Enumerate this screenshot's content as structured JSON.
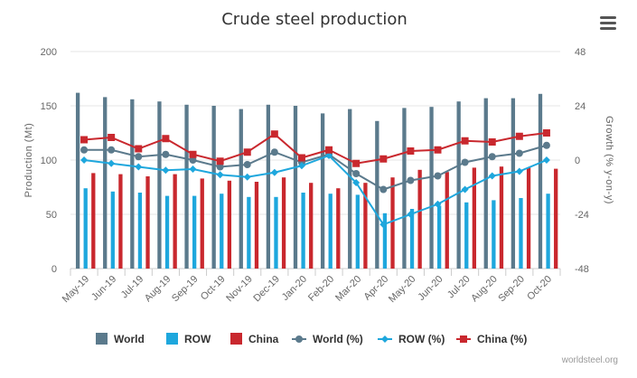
{
  "chart_data": {
    "type": "bar",
    "title": "Crude steel production",
    "categories": [
      "May-19",
      "Jun-19",
      "Jul-19",
      "Aug-19",
      "Sep-19",
      "Oct-19",
      "Nov-19",
      "Dec-19",
      "Jan-20",
      "Feb-20",
      "Mar-20",
      "Apr-20",
      "May-20",
      "Jun-20",
      "Jul-20",
      "Aug-20",
      "Sep-20",
      "Oct-20"
    ],
    "ylabel": "Production (Mt)",
    "ylabel_right": "Growth (% y-on-y)",
    "ylim": [
      0,
      200
    ],
    "ylim_right": [
      -48,
      48
    ],
    "yticks": [
      "0",
      "50",
      "100",
      "150",
      "200"
    ],
    "yticks_right": [
      "-48",
      "-24",
      "0",
      "24",
      "48"
    ],
    "grid": true,
    "legend_position": "bottom",
    "series": [
      {
        "name": "World",
        "kind": "bar",
        "axis": "left",
        "color": "#5b7a8c",
        "values": [
          162,
          158,
          156,
          154,
          151,
          150,
          147,
          151,
          150,
          143,
          147,
          136,
          148,
          149,
          154,
          157,
          157,
          161
        ]
      },
      {
        "name": "ROW",
        "kind": "bar",
        "axis": "left",
        "color": "#1ea7dd",
        "values": [
          74,
          71,
          70,
          67,
          67,
          69,
          66,
          66,
          70,
          69,
          68,
          51,
          55,
          58,
          61,
          63,
          65,
          69
        ]
      },
      {
        "name": "China",
        "kind": "bar",
        "axis": "left",
        "color": "#c9282e",
        "values": [
          88,
          87,
          85,
          87,
          83,
          81,
          80,
          84,
          79,
          74,
          79,
          84,
          91,
          89,
          93,
          94,
          93,
          92
        ]
      },
      {
        "name": "World (%)",
        "kind": "line",
        "axis": "right",
        "color": "#5b7a8c",
        "marker": "circle",
        "values": [
          4.5,
          4.5,
          1.5,
          2.5,
          0,
          -3,
          -2,
          3.5,
          -1,
          2.5,
          -6,
          -13,
          -9,
          -7,
          -1,
          1.5,
          3,
          6.5
        ]
      },
      {
        "name": "ROW (%)",
        "kind": "line",
        "axis": "right",
        "color": "#1ea7dd",
        "marker": "diamond",
        "values": [
          0,
          -1.5,
          -3,
          -4.5,
          -4,
          -6.5,
          -7.5,
          -5.5,
          -2.5,
          2,
          -10,
          -28.5,
          -24,
          -19.5,
          -13,
          -7,
          -5,
          0
        ]
      },
      {
        "name": "China (%)",
        "kind": "line",
        "axis": "right",
        "color": "#c9282e",
        "marker": "square",
        "values": [
          9,
          10,
          5,
          9.5,
          2.5,
          -0.5,
          3.5,
          11.5,
          1,
          4.5,
          -1.5,
          0.5,
          4,
          4.5,
          8.5,
          8,
          10.5,
          12
        ]
      }
    ],
    "legend": [
      "World",
      "ROW",
      "China",
      "World (%)",
      "ROW (%)",
      "China (%)"
    ],
    "credit": "worldsteel.org"
  }
}
